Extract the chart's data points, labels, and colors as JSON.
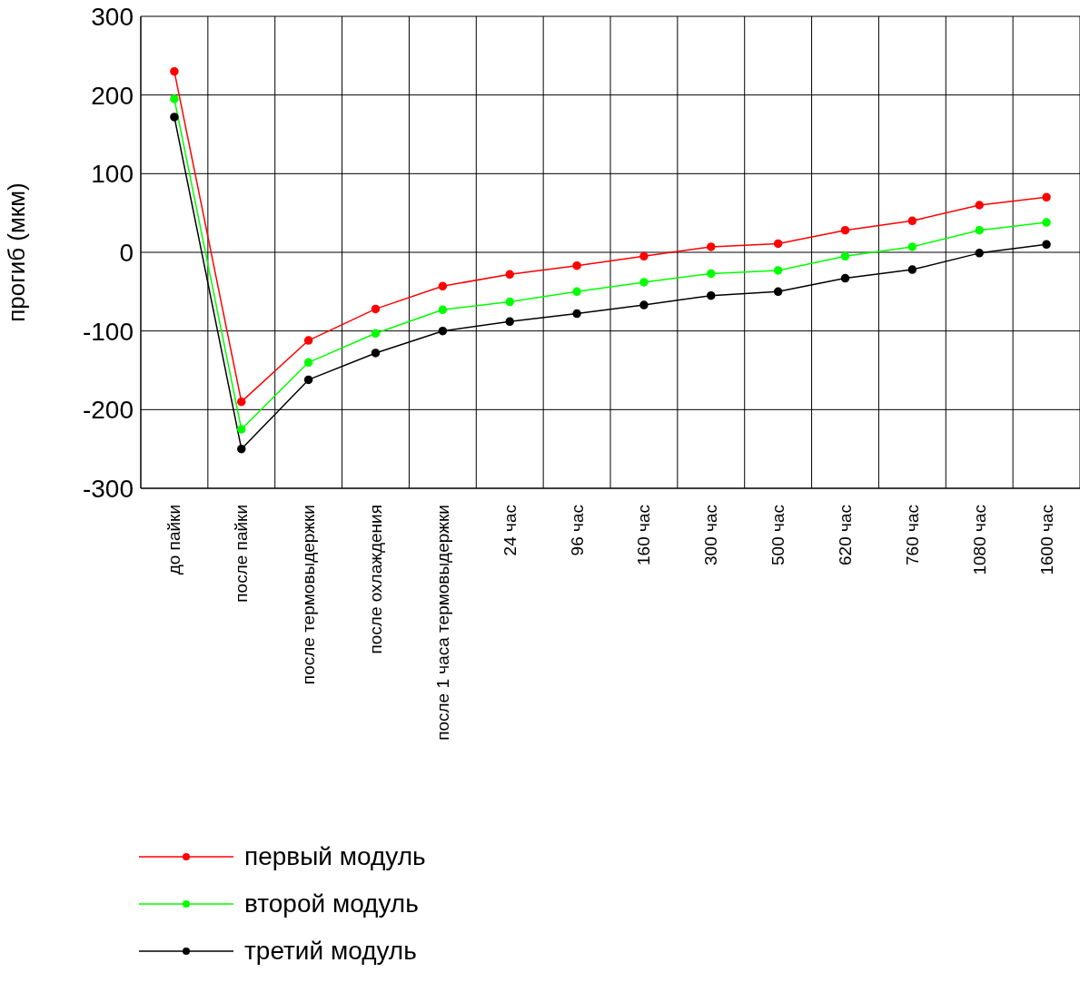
{
  "chart_data": {
    "type": "line",
    "ylabel": "прогиб (мкм)",
    "categories": [
      "до пайки",
      "после пайки",
      "после термовыдержки",
      "после охлаждения",
      "после 1 часа термовыдержки",
      "24 час",
      "96 час",
      "160 час",
      "300 час",
      "500 час",
      "620 час",
      "760 час",
      "1080 час",
      "1600 час"
    ],
    "series": [
      {
        "name": "первый модуль",
        "color": "#ff0000",
        "values": [
          230,
          -190,
          -112,
          -72,
          -43,
          -28,
          -17,
          -5,
          7,
          11,
          28,
          40,
          60,
          70
        ]
      },
      {
        "name": "второй модуль",
        "color": "#00ff00",
        "values": [
          195,
          -225,
          -140,
          -103,
          -73,
          -63,
          -50,
          -38,
          -27,
          -23,
          -5,
          7,
          28,
          38
        ]
      },
      {
        "name": "третий модуль",
        "color": "#000000",
        "values": [
          172,
          -250,
          -162,
          -128,
          -100,
          -88,
          -78,
          -67,
          -55,
          -50,
          -33,
          -22,
          -1,
          10
        ]
      }
    ],
    "ylim": [
      -300,
      300
    ],
    "yticks": [
      -300,
      -200,
      -100,
      0,
      100,
      200,
      300
    ],
    "grid": true,
    "legend": "bottom left",
    "marker": "circle",
    "line_style": "solid"
  }
}
